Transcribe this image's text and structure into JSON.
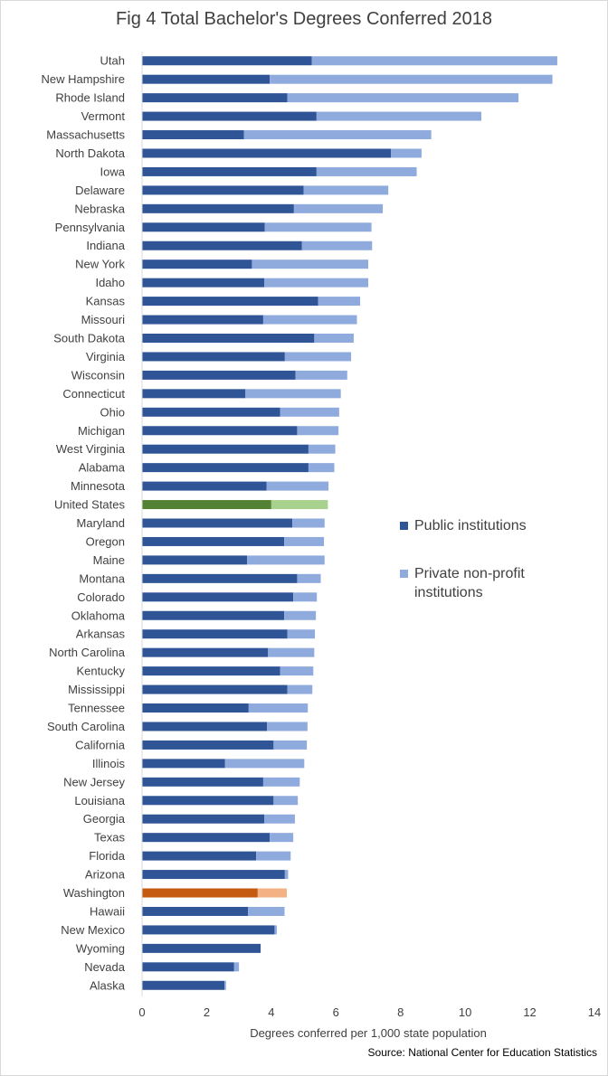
{
  "title": "Fig 4 Total Bachelor's Degrees Conferred 2018",
  "source": "Source: National Center for Education Statistics",
  "legend": {
    "public_label": "Public institutions",
    "private_label": "Private non-profit institutions"
  },
  "colors": {
    "public": "#2f5597",
    "private": "#8faadc",
    "us_public": "#548235",
    "us_private": "#a9d18e",
    "wa_public": "#c55a11",
    "wa_private": "#f4b183",
    "axis": "#d9d9d9",
    "text": "#404040"
  },
  "chart_data": {
    "type": "bar",
    "orientation": "horizontal",
    "stacked": true,
    "title": "Fig 4 Total Bachelor's Degrees Conferred 2018",
    "xlabel": "Degrees conferred per 1,000 state population",
    "ylabel": "",
    "xlim": [
      0,
      14
    ],
    "xticks": [
      0,
      2,
      4,
      6,
      8,
      10,
      12,
      14
    ],
    "grid": false,
    "legend_position": "right",
    "categories": [
      "Utah",
      "New Hampshire",
      "Rhode Island",
      "Vermont",
      "Massachusetts",
      "North Dakota",
      "Iowa",
      "Delaware",
      "Nebraska",
      "Pennsylvania",
      "Indiana",
      "New York",
      "Idaho",
      "Kansas",
      "Missouri",
      "South Dakota",
      "Virginia",
      "Wisconsin",
      "Connecticut",
      "Ohio",
      "Michigan",
      "West Virginia",
      "Alabama",
      "Minnesota",
      "United States",
      "Maryland",
      "Oregon",
      "Maine",
      "Montana",
      "Colorado",
      "Oklahoma",
      "Arkansas",
      "North Carolina",
      "Kentucky",
      "Mississippi",
      "Tennessee",
      "South Carolina",
      "California",
      "Illinois",
      "New Jersey",
      "Louisiana",
      "Georgia",
      "Texas",
      "Florida",
      "Arizona",
      "Washington",
      "Hawaii",
      "New Mexico",
      "Wyoming",
      "Nevada",
      "Alaska"
    ],
    "series": [
      {
        "name": "Public institutions",
        "values": [
          5.25,
          3.95,
          4.5,
          5.4,
          3.15,
          7.7,
          5.4,
          5.0,
          4.7,
          3.8,
          4.95,
          3.4,
          3.78,
          5.45,
          3.75,
          5.33,
          4.42,
          4.75,
          3.2,
          4.27,
          4.8,
          5.15,
          5.15,
          3.85,
          4.0,
          4.65,
          4.4,
          3.25,
          4.8,
          4.68,
          4.4,
          4.5,
          3.9,
          4.27,
          4.5,
          3.3,
          3.87,
          4.07,
          2.57,
          3.75,
          4.07,
          3.78,
          3.95,
          3.53,
          4.42,
          3.58,
          3.28,
          4.1,
          3.67,
          2.85,
          2.55
        ]
      },
      {
        "name": "Private non-profit institutions",
        "values": [
          7.6,
          8.75,
          7.15,
          5.1,
          5.8,
          0.95,
          3.1,
          2.62,
          2.75,
          3.3,
          2.17,
          3.6,
          3.22,
          1.3,
          2.9,
          1.22,
          2.05,
          1.6,
          2.95,
          1.83,
          1.28,
          0.83,
          0.8,
          1.92,
          1.75,
          1.0,
          1.23,
          2.4,
          0.73,
          0.73,
          0.98,
          0.85,
          1.43,
          1.03,
          0.77,
          1.83,
          1.25,
          1.03,
          2.45,
          1.13,
          0.75,
          0.95,
          0.73,
          1.07,
          0.1,
          0.9,
          1.13,
          0.07,
          0.0,
          0.15,
          0.05
        ]
      }
    ],
    "highlighted": {
      "United States": "green",
      "Washington": "orange"
    }
  }
}
